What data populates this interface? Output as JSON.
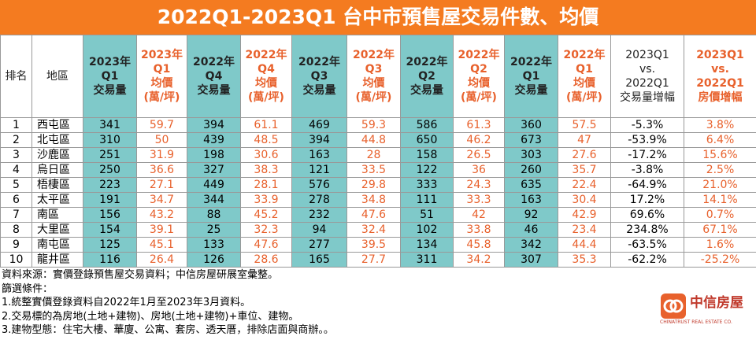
{
  "header": {
    "title": "2022Q1-2023Q1 台中市預售屋交易件數、均價"
  },
  "table": {
    "columns": [
      "排名",
      "地區",
      "2023年\nQ1\n交易量",
      "2023年\nQ1\n均價\n(萬/坪)",
      "2022年\nQ4\n交易量",
      "2022年\nQ4\n均價\n(萬/坪)",
      "2022年\nQ3\n交易量",
      "2022年\nQ3\n均價\n(萬/坪)",
      "2022年\nQ2\n交易量",
      "2022年\nQ2\n均價\n(萬/坪)",
      "2022年\nQ1\n交易量",
      "2022年\nQ1\n均價\n(萬/坪)",
      "2023Q1\nvs.\n2022Q1\n交易量增幅",
      "2023Q1\nvs.\n2022Q1\n房價增幅"
    ],
    "rows": [
      [
        "1",
        "西屯區",
        "341",
        "59.7",
        "394",
        "61.1",
        "469",
        "59.3",
        "586",
        "61.3",
        "360",
        "57.5",
        "-5.3%",
        "3.8%"
      ],
      [
        "2",
        "北屯區",
        "310",
        "50",
        "439",
        "48.5",
        "394",
        "44.8",
        "650",
        "46.2",
        "673",
        "47",
        "-53.9%",
        "6.4%"
      ],
      [
        "3",
        "沙鹿區",
        "251",
        "31.9",
        "198",
        "30.6",
        "163",
        "28",
        "158",
        "26.5",
        "303",
        "27.6",
        "-17.2%",
        "15.6%"
      ],
      [
        "4",
        "烏日區",
        "250",
        "36.6",
        "327",
        "38.3",
        "121",
        "33.5",
        "122",
        "36",
        "260",
        "35.7",
        "-3.8%",
        "2.5%"
      ],
      [
        "5",
        "梧棲區",
        "223",
        "27.1",
        "449",
        "28.1",
        "576",
        "29.8",
        "333",
        "24.3",
        "635",
        "22.4",
        "-64.9%",
        "21.0%"
      ],
      [
        "6",
        "太平區",
        "191",
        "34.7",
        "344",
        "33.9",
        "278",
        "34.8",
        "111",
        "33.3",
        "163",
        "30.4",
        "17.2%",
        "14.1%"
      ],
      [
        "7",
        "南區",
        "156",
        "43.2",
        "88",
        "45.2",
        "232",
        "47.6",
        "51",
        "42",
        "92",
        "42.9",
        "69.6%",
        "0.7%"
      ],
      [
        "8",
        "大里區",
        "154",
        "39.1",
        "25",
        "32.3",
        "94",
        "32.4",
        "102",
        "33.8",
        "46",
        "23.4",
        "234.8%",
        "67.1%"
      ],
      [
        "9",
        "南屯區",
        "125",
        "45.1",
        "133",
        "47.6",
        "277",
        "39.5",
        "134",
        "45.8",
        "342",
        "44.4",
        "-63.5%",
        "1.6%"
      ],
      [
        "10",
        "龍井區",
        "116",
        "26.4",
        "126",
        "28.6",
        "165",
        "27.7",
        "311",
        "34.2",
        "307",
        "35.3",
        "-62.2%",
        "-25.2%"
      ]
    ]
  },
  "notes": [
    "資料來源：實價登錄預售屋交易資料；中信房屋研展室彙整。",
    "篩選條件：",
    "1.統整實價登錄資料自2022年1月至2023年3月資料。",
    "2.交易標的為房地(土地+建物)、房地(土地+建物)+車位、建物。",
    "3.建物型態：住宅大樓、華廈、公寓、套房、透天厝，排除店面與商辦。。"
  ],
  "logo": {
    "name": "中信房屋",
    "subtitle": "CHINATRUST REAL ESTATE CO."
  }
}
